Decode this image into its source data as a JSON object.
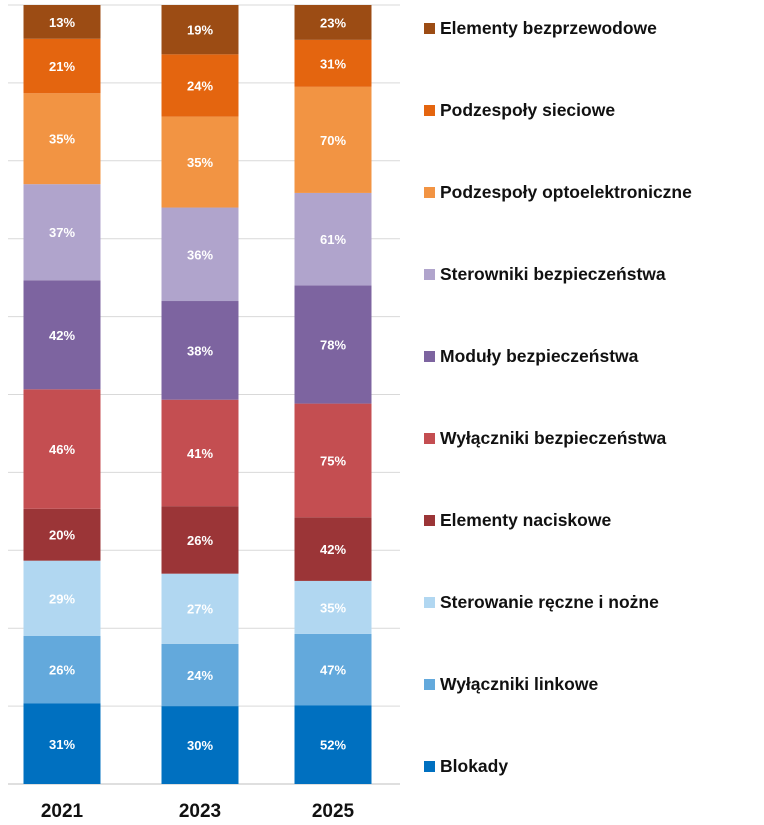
{
  "chart_data": {
    "type": "bar",
    "stacked": true,
    "normalized": "100%",
    "title": "",
    "xlabel": "",
    "ylabel": "",
    "categories": [
      "2021",
      "2023",
      "2025"
    ],
    "grid": true,
    "legend_position": "right",
    "series": [
      {
        "name": "Blokady",
        "color": "#0070c0",
        "values": [
          31,
          30,
          52
        ],
        "labels": [
          "31%",
          "30%",
          "52%"
        ]
      },
      {
        "name": "Wyłączniki linkowe",
        "color": "#63a9dc",
        "values": [
          26,
          24,
          47
        ],
        "labels": [
          "26%",
          "24%",
          "47%"
        ]
      },
      {
        "name": "Sterowanie ręczne i nożne",
        "color": "#b1d7f1",
        "values": [
          29,
          27,
          35
        ],
        "labels": [
          "29%",
          "27%",
          "35%"
        ]
      },
      {
        "name": "Elementy naciskowe",
        "color": "#9b3537",
        "values": [
          20,
          26,
          42
        ],
        "labels": [
          "20%",
          "26%",
          "42%"
        ]
      },
      {
        "name": "Wyłączniki bezpieczeństwa",
        "color": "#c44e51",
        "values": [
          46,
          41,
          75
        ],
        "labels": [
          "46%",
          "41%",
          "75%"
        ]
      },
      {
        "name": "Moduły bezpieczeństwa",
        "color": "#7d64a0",
        "values": [
          42,
          38,
          78
        ],
        "labels": [
          "42%",
          "38%",
          "78%"
        ]
      },
      {
        "name": "Sterowniki bezpieczeństwa",
        "color": "#b0a4cc",
        "values": [
          37,
          36,
          61
        ],
        "labels": [
          "37%",
          "36%",
          "61%"
        ]
      },
      {
        "name": "Podzespoły optoelektroniczne",
        "color": "#f29443",
        "values": [
          35,
          35,
          70
        ],
        "labels": [
          "35%",
          "35%",
          "70%"
        ]
      },
      {
        "name": "Podzespoły sieciowe",
        "color": "#e4650f",
        "values": [
          21,
          24,
          31
        ],
        "labels": [
          "21%",
          "24%",
          "31%"
        ]
      },
      {
        "name": "Elementy bezprzewodowe",
        "color": "#9c4c14",
        "values": [
          13,
          19,
          23
        ],
        "labels": [
          "13%",
          "19%",
          "23%"
        ]
      }
    ]
  }
}
